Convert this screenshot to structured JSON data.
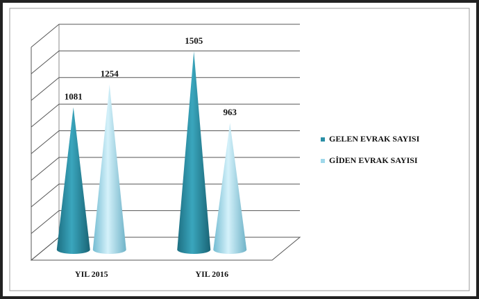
{
  "chart_data": {
    "type": "cone",
    "categories": [
      "YIL 2015",
      "YIL 2016"
    ],
    "series": [
      {
        "name": "GELEN EVRAK SAYISI",
        "color": "#2a8fa6",
        "values": [
          1081,
          1505
        ]
      },
      {
        "name": "GİDEN EVRAK SAYISI",
        "color": "#9fd8ea",
        "values": [
          1254,
          963
        ]
      }
    ],
    "ylim": [
      0,
      1600
    ],
    "yticks": [
      0,
      200,
      400,
      600,
      800,
      1000,
      1200,
      1400,
      1600
    ],
    "grid": true,
    "legend": "right"
  }
}
